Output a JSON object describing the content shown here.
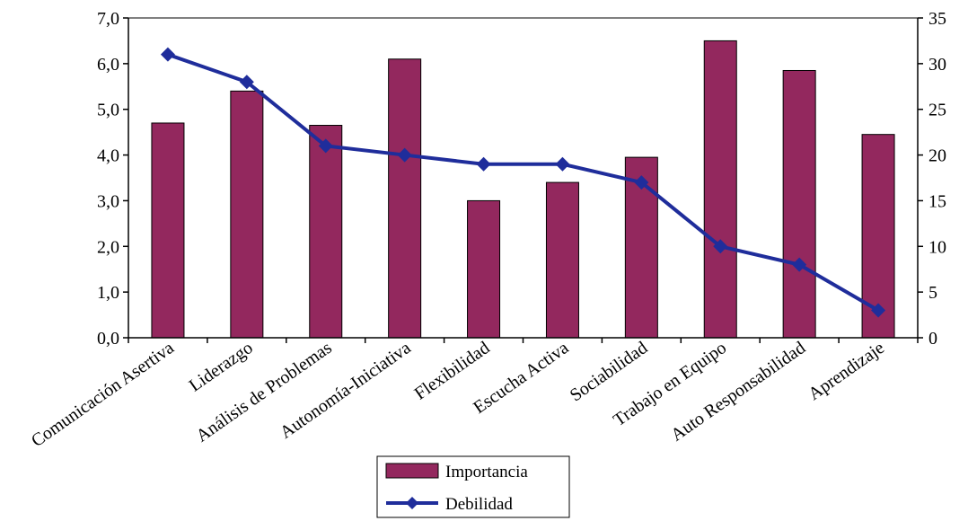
{
  "chart_data": {
    "type": "bar",
    "categories": [
      "Comunicación Asertiva",
      "Liderazgo",
      "Análisis de Problemas",
      "Autonomía-Iniciativa",
      "Flexibilidad",
      "Escucha Activa",
      "Sociabilidad",
      "Trabajo en Equipo",
      "Auto Responsabilidad",
      "Aprendizaje"
    ],
    "series": [
      {
        "name": "Importancia",
        "type": "bar",
        "axis": "left",
        "values": [
          4.7,
          5.4,
          4.65,
          6.1,
          3.0,
          3.4,
          3.95,
          6.5,
          5.85,
          4.45
        ]
      },
      {
        "name": "Debilidad",
        "type": "line",
        "axis": "right",
        "values": [
          31,
          28,
          21,
          20,
          19,
          19,
          17,
          10,
          8,
          3
        ]
      }
    ],
    "y_left": {
      "lim": [
        0,
        7
      ],
      "ticks": [
        "0,0",
        "1,0",
        "2,0",
        "3,0",
        "4,0",
        "5,0",
        "6,0",
        "7,0"
      ]
    },
    "y_right": {
      "lim": [
        0,
        35
      ],
      "ticks": [
        "0",
        "5",
        "10",
        "15",
        "20",
        "25",
        "30",
        "35"
      ]
    },
    "title": "",
    "xlabel": "",
    "ylabel": "",
    "grid": false,
    "legend_position": "bottom-center",
    "colors": {
      "bar": "#93285e",
      "line": "#1f2d9b"
    }
  }
}
